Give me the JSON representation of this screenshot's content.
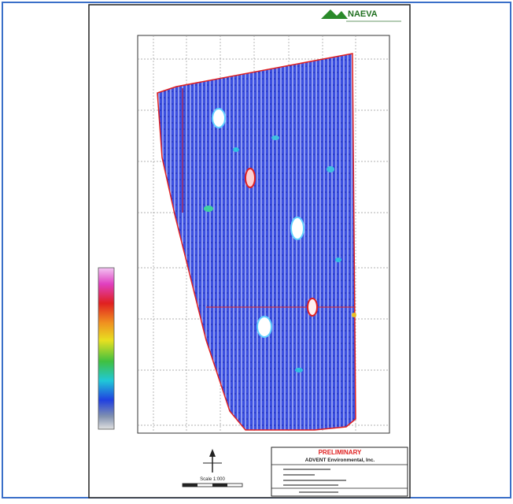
{
  "header": {
    "logo": "NAEVA"
  },
  "title_block": {
    "status": "PRELIMINARY",
    "company": "ADVENT Environmental, Inc."
  },
  "scale": {
    "label": "Scale 1:000"
  }
}
